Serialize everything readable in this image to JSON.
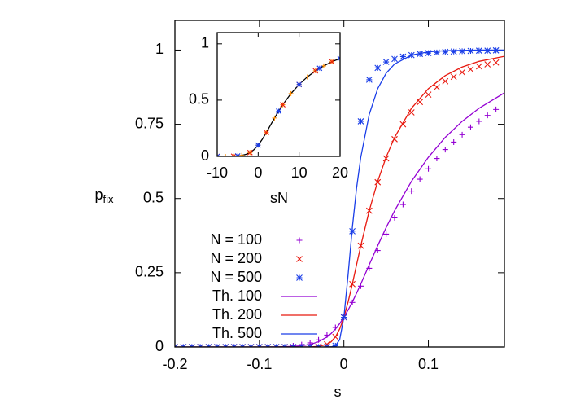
{
  "chart_data": [
    {
      "type": "line",
      "xlabel": "s",
      "ylabel": "p",
      "ylabel_subscript": "fix",
      "xlim": [
        -0.2,
        0.19
      ],
      "ylim": [
        0,
        1.1
      ],
      "xticks": [
        -0.2,
        -0.1,
        0,
        0.1
      ],
      "yticks": [
        0,
        0.25,
        0.5,
        0.75,
        1
      ],
      "legend": "lower left",
      "series": [
        {
          "name": "N = 100",
          "color": "#9400d3",
          "style": "points",
          "marker": "+",
          "x": [
            -0.2,
            -0.19,
            -0.18,
            -0.17,
            -0.16,
            -0.15,
            -0.14,
            -0.13,
            -0.12,
            -0.11,
            -0.1,
            -0.09,
            -0.08,
            -0.07,
            -0.06,
            -0.05,
            -0.04,
            -0.03,
            -0.02,
            -0.01,
            0,
            0.01,
            0.02,
            0.03,
            0.04,
            0.05,
            0.06,
            0.07,
            0.08,
            0.09,
            0.1,
            0.11,
            0.12,
            0.13,
            0.14,
            0.15,
            0.16,
            0.17,
            0.18
          ],
          "values": [
            0,
            0,
            0,
            0,
            0,
            0,
            0,
            0,
            0,
            0,
            0,
            0,
            0,
            0,
            0.004,
            0.008,
            0.014,
            0.024,
            0.04,
            0.066,
            0.1,
            0.15,
            0.205,
            0.265,
            0.325,
            0.38,
            0.435,
            0.48,
            0.525,
            0.565,
            0.6,
            0.635,
            0.665,
            0.69,
            0.715,
            0.74,
            0.76,
            0.78,
            0.8
          ]
        },
        {
          "name": "N = 200",
          "color": "#e8190f",
          "style": "points",
          "marker": "x",
          "x": [
            -0.2,
            -0.19,
            -0.18,
            -0.17,
            -0.16,
            -0.15,
            -0.14,
            -0.13,
            -0.12,
            -0.11,
            -0.1,
            -0.09,
            -0.08,
            -0.07,
            -0.06,
            -0.05,
            -0.04,
            -0.03,
            -0.02,
            -0.01,
            0,
            0.01,
            0.02,
            0.03,
            0.04,
            0.05,
            0.06,
            0.07,
            0.08,
            0.09,
            0.1,
            0.11,
            0.12,
            0.13,
            0.14,
            0.15,
            0.16,
            0.17,
            0.18
          ],
          "values": [
            0,
            0,
            0,
            0,
            0,
            0,
            0,
            0,
            0,
            0,
            0,
            0,
            0,
            0,
            0,
            0,
            0.0004,
            0.002,
            0.009,
            0.034,
            0.1,
            0.212,
            0.341,
            0.459,
            0.555,
            0.635,
            0.7,
            0.75,
            0.79,
            0.825,
            0.85,
            0.875,
            0.895,
            0.91,
            0.925,
            0.935,
            0.945,
            0.952,
            0.958
          ]
        },
        {
          "name": "N = 500",
          "color": "#1a3ee8",
          "style": "points",
          "marker": "*",
          "x": [
            -0.2,
            -0.19,
            -0.18,
            -0.17,
            -0.16,
            -0.15,
            -0.14,
            -0.13,
            -0.12,
            -0.11,
            -0.1,
            -0.09,
            -0.08,
            -0.07,
            -0.06,
            -0.05,
            -0.04,
            -0.03,
            -0.02,
            -0.01,
            0,
            0.01,
            0.02,
            0.03,
            0.04,
            0.05,
            0.06,
            0.07,
            0.08,
            0.09,
            0.1,
            0.11,
            0.12,
            0.13,
            0.14,
            0.15,
            0.16,
            0.17,
            0.18
          ],
          "values": [
            0,
            0,
            0,
            0,
            0,
            0,
            0,
            0,
            0,
            0,
            0,
            0,
            0,
            0,
            0,
            0,
            0,
            0,
            0,
            0.004,
            0.1,
            0.39,
            0.76,
            0.9,
            0.94,
            0.96,
            0.97,
            0.978,
            0.983,
            0.987,
            0.99,
            0.992,
            0.994,
            0.995,
            0.996,
            0.997,
            0.998,
            0.998,
            0.999
          ]
        },
        {
          "name": "Th. 100",
          "color": "#9400d3",
          "style": "line",
          "x": [
            -0.2,
            -0.15,
            -0.1,
            -0.08,
            -0.06,
            -0.05,
            -0.04,
            -0.03,
            -0.02,
            -0.015,
            -0.01,
            -0.005,
            0,
            0.005,
            0.01,
            0.015,
            0.02,
            0.03,
            0.04,
            0.05,
            0.06,
            0.08,
            0.1,
            0.12,
            0.14,
            0.16,
            0.19
          ],
          "values": [
            0,
            0,
            0,
            0.0004,
            0.0019,
            0.0041,
            0.0087,
            0.0176,
            0.0338,
            0.0457,
            0.0606,
            0.0787,
            0.1,
            0.1245,
            0.1517,
            0.1811,
            0.212,
            0.277,
            0.341,
            0.402,
            0.459,
            0.558,
            0.639,
            0.706,
            0.76,
            0.804,
            0.856
          ]
        },
        {
          "name": "Th. 200",
          "color": "#e8190f",
          "style": "line",
          "x": [
            -0.2,
            -0.15,
            -0.1,
            -0.08,
            -0.06,
            -0.05,
            -0.04,
            -0.03,
            -0.02,
            -0.015,
            -0.01,
            -0.005,
            0,
            0.005,
            0.01,
            0.015,
            0.02,
            0.03,
            0.04,
            0.05,
            0.06,
            0.08,
            0.1,
            0.12,
            0.14,
            0.16,
            0.19
          ],
          "values": [
            0,
            0,
            0,
            0,
            0,
            0,
            0.0004,
            0.0019,
            0.0087,
            0.0176,
            0.0338,
            0.0606,
            0.1,
            0.1517,
            0.212,
            0.277,
            0.341,
            0.459,
            0.558,
            0.639,
            0.706,
            0.804,
            0.87,
            0.914,
            0.943,
            0.962,
            0.979
          ]
        },
        {
          "name": "Th. 500",
          "color": "#1a3ee8",
          "style": "line",
          "x": [
            -0.2,
            -0.15,
            -0.1,
            -0.08,
            -0.06,
            -0.05,
            -0.04,
            -0.03,
            -0.02,
            -0.015,
            -0.01,
            -0.005,
            0,
            0.005,
            0.01,
            0.015,
            0.02,
            0.03,
            0.04,
            0.05,
            0.06,
            0.08,
            0.1,
            0.12,
            0.14,
            0.16,
            0.19
          ],
          "values": [
            0,
            0,
            0,
            0,
            0,
            0,
            0,
            0,
            0,
            0.0005,
            0.0041,
            0.0246,
            0.1,
            0.244,
            0.402,
            0.535,
            0.639,
            0.783,
            0.87,
            0.922,
            0.953,
            0.983,
            0.994,
            0.998,
            0.999,
            1,
            1
          ]
        }
      ]
    },
    {
      "type": "line",
      "xlabel": "sN",
      "xlim": [
        -10,
        20
      ],
      "ylim": [
        0,
        1.1
      ],
      "xticks": [
        -10,
        0,
        10,
        20
      ],
      "yticks": [
        0,
        0.5,
        1
      ],
      "series": [
        {
          "color": "#000000",
          "style": "line",
          "x": [
            -10,
            -8,
            -6,
            -5,
            -4,
            -3,
            -2,
            -1,
            0,
            1,
            2,
            3,
            4,
            5,
            6,
            8,
            10,
            12,
            14,
            16,
            18,
            20
          ],
          "values": [
            0,
            0.0004,
            0.0019,
            0.0041,
            0.0087,
            0.0176,
            0.0338,
            0.0606,
            0.1,
            0.1517,
            0.212,
            0.277,
            0.341,
            0.402,
            0.459,
            0.558,
            0.639,
            0.706,
            0.76,
            0.804,
            0.841,
            0.87
          ]
        },
        {
          "color": "#ff8c00",
          "style": "points",
          "marker": "+",
          "x": [
            -10,
            -8,
            -6,
            -4,
            -2,
            0,
            2,
            4,
            6,
            8,
            10,
            12,
            14,
            16,
            18
          ],
          "values": [
            0,
            0,
            0.002,
            0.009,
            0.034,
            0.1,
            0.212,
            0.341,
            0.459,
            0.558,
            0.639,
            0.706,
            0.76,
            0.804,
            0.841
          ]
        },
        {
          "color": "#e8190f",
          "style": "points",
          "marker": "x",
          "x": [
            -10,
            -6,
            -2,
            2,
            6,
            10,
            14,
            18
          ],
          "values": [
            0,
            0.002,
            0.034,
            0.212,
            0.459,
            0.639,
            0.76,
            0.841
          ]
        },
        {
          "color": "#1a3ee8",
          "style": "points",
          "marker": "*",
          "x": [
            -10,
            -5,
            0,
            5,
            10,
            15,
            20
          ],
          "values": [
            0,
            0.004,
            0.1,
            0.402,
            0.639,
            0.783,
            0.87
          ]
        }
      ]
    }
  ]
}
